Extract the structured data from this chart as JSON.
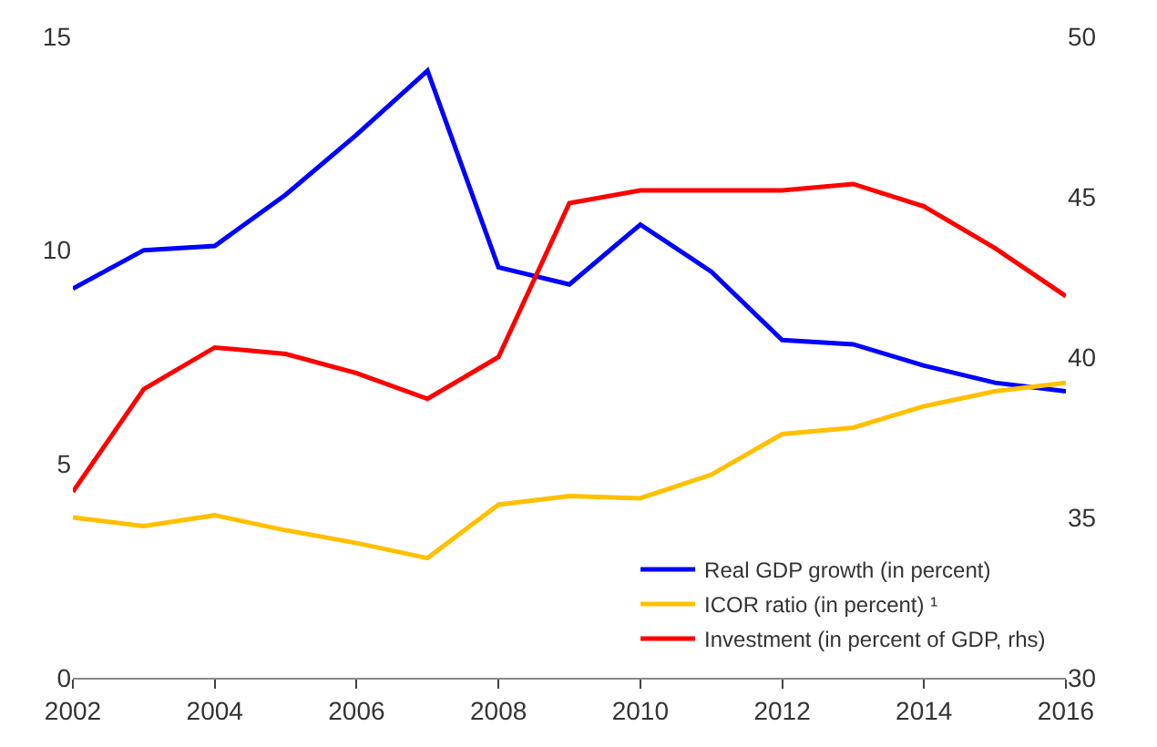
{
  "chart_data": {
    "type": "line",
    "x": [
      2002,
      2003,
      2004,
      2005,
      2006,
      2007,
      2008,
      2009,
      2010,
      2011,
      2012,
      2013,
      2014,
      2015,
      2016
    ],
    "xlim": [
      2002,
      2016
    ],
    "xticks": [
      2002,
      2004,
      2006,
      2008,
      2010,
      2012,
      2014,
      2016
    ],
    "ylim": [
      0,
      15
    ],
    "yticks": [
      0,
      5,
      10,
      15
    ],
    "y2lim": [
      30,
      50
    ],
    "y2ticks": [
      30,
      35,
      40,
      45,
      50
    ],
    "legend": "bottom right",
    "marker": "none",
    "line_style": "solid",
    "series": [
      {
        "name": "Real GDP growth (in percent)",
        "color": "#0000ff",
        "values": [
          9.1,
          10.0,
          10.1,
          11.3,
          12.7,
          14.2,
          9.6,
          9.2,
          10.6,
          9.5,
          7.9,
          7.8,
          7.3,
          6.9,
          6.7
        ]
      },
      {
        "name": "ICOR ratio (in percent) ¹",
        "color": "#ffc000",
        "values": [
          3.75,
          3.55,
          3.8,
          3.45,
          3.15,
          2.8,
          4.05,
          4.25,
          4.2,
          4.75,
          5.7,
          5.85,
          6.35,
          6.7,
          6.9
        ]
      },
      {
        "name": "Investment (in percent of GDP, rhs)",
        "color": "#ff0000",
        "axis": "y2",
        "values": [
          35.8,
          39.0,
          40.3,
          40.1,
          39.5,
          38.7,
          40.0,
          44.8,
          45.2,
          45.2,
          45.2,
          45.4,
          44.7,
          43.4,
          41.9
        ]
      }
    ]
  }
}
